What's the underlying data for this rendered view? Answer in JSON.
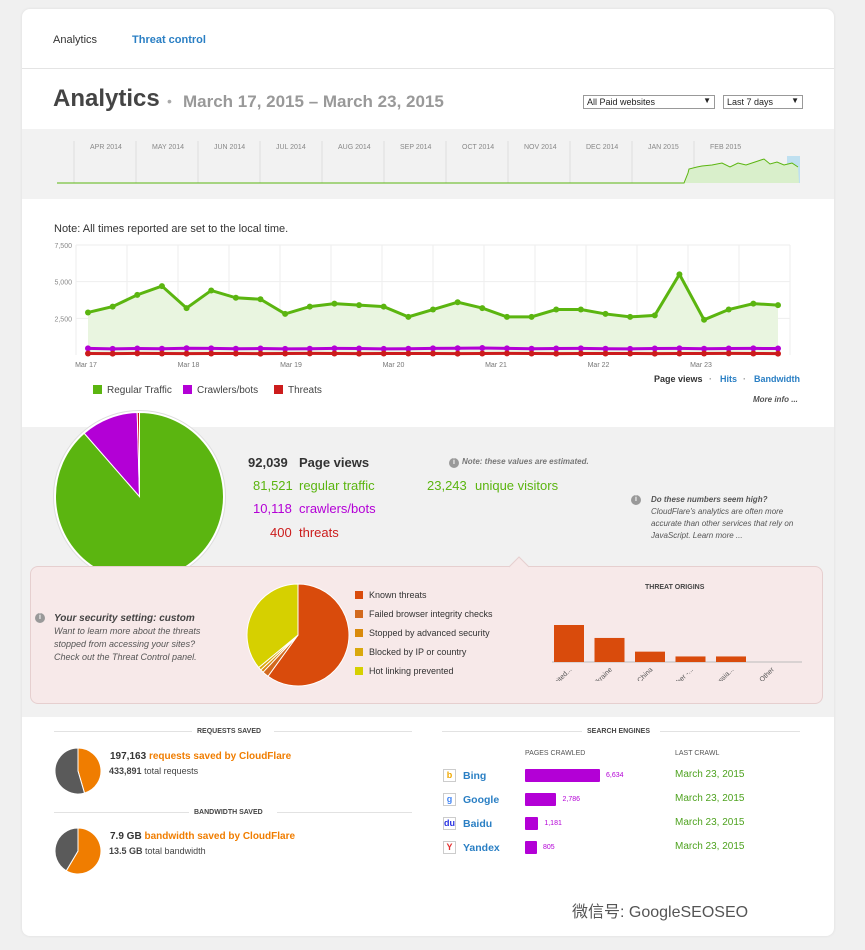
{
  "tabs": {
    "analytics": "Analytics",
    "threat_control": "Threat control"
  },
  "header": {
    "title": "Analytics",
    "separator": "•",
    "date_range": "March 17, 2015 – March 23, 2015",
    "site_select": "All Paid websites",
    "period_select": "Last 7 days"
  },
  "overview": {
    "months": [
      "APR 2014",
      "MAY 2014",
      "JUN 2014",
      "JUL 2014",
      "AUG 2014",
      "SEP 2014",
      "OCT 2014",
      "NOV 2014",
      "DEC 2014",
      "JAN 2015",
      "FEB 2015"
    ]
  },
  "note": "Note: All times reported are set to the local time.",
  "chart_data": [
    {
      "type": "line",
      "title": "",
      "y_ticks": [
        "7,500",
        "5,000",
        "2,500"
      ],
      "ylim": [
        0,
        7500
      ],
      "x_ticks": [
        "Mar 17",
        "Mar 18",
        "Mar 19",
        "Mar 20",
        "Mar 21",
        "Mar 22",
        "Mar 23"
      ],
      "series": [
        {
          "name": "Regular Traffic",
          "color": "#5bb510",
          "values": [
            2900,
            3300,
            4100,
            4700,
            3200,
            4400,
            3900,
            3800,
            2800,
            3300,
            3500,
            3400,
            3300,
            2600,
            3100,
            3600,
            3200,
            2600,
            2600,
            3100,
            3100,
            2800,
            2600,
            2700,
            5500,
            2400,
            3100,
            3500,
            3400
          ]
        },
        {
          "name": "Crawlers/bots",
          "color": "#b300d6",
          "values": [
            450,
            420,
            440,
            430,
            460,
            450,
            430,
            440,
            420,
            430,
            450,
            440,
            420,
            430,
            450,
            460,
            480,
            450,
            430,
            440,
            450,
            430,
            420,
            440,
            450,
            430,
            440,
            450,
            440
          ]
        },
        {
          "name": "Threats",
          "color": "#cc1c1c",
          "values": [
            100,
            90,
            110,
            100,
            95,
            105,
            100,
            90,
            100,
            110,
            100,
            95,
            100,
            105,
            100,
            95,
            100,
            110,
            100,
            90,
            100,
            105,
            100,
            95,
            100,
            100,
            110,
            100,
            95
          ]
        }
      ]
    },
    {
      "type": "pie",
      "values": [
        {
          "label": "regular traffic",
          "value": 81521,
          "color": "#5bb510"
        },
        {
          "label": "crawlers/bots",
          "value": 10118,
          "color": "#b300d6"
        },
        {
          "label": "threats",
          "value": 400,
          "color": "#cc1c1c"
        }
      ]
    },
    {
      "type": "pie",
      "values": [
        {
          "label": "Known threats",
          "value": 60,
          "color": "#d94b0c"
        },
        {
          "label": "Failed browser integrity checks",
          "value": 2,
          "color": "#d2691e"
        },
        {
          "label": "Stopped by advanced security",
          "value": 1,
          "color": "#d98a0c"
        },
        {
          "label": "Blocked by IP or country",
          "value": 1,
          "color": "#d9a80c"
        },
        {
          "label": "Hot linking prevented",
          "value": 36,
          "color": "#d6d000"
        }
      ]
    },
    {
      "type": "bar",
      "title": "THREAT ORIGINS",
      "categories": [
        "United...",
        "Ukraine",
        "China",
        "Other -...",
        "Russia...",
        "Other"
      ],
      "values": [
        100,
        65,
        28,
        15,
        15,
        0
      ],
      "color": "#d94b0c"
    },
    {
      "type": "pie",
      "values": [
        {
          "label": "requests saved by CloudFlare",
          "value": 197163,
          "color": "#f07d00"
        },
        {
          "label": "total requests",
          "value": 433891,
          "color": "#555"
        }
      ]
    },
    {
      "type": "pie",
      "values": [
        {
          "label": "bandwidth saved by CloudFlare",
          "value": 7.9,
          "color": "#f07d00"
        },
        {
          "label": "total bandwidth",
          "value": 13.5,
          "color": "#555"
        }
      ]
    },
    {
      "type": "bar",
      "title": "SEARCH ENGINES",
      "categories": [
        "Bing",
        "Google",
        "Baidu",
        "Yandex"
      ],
      "values": [
        6634,
        2786,
        1181,
        805
      ],
      "color": "#b300d6"
    }
  ],
  "legend": {
    "regular": "Regular Traffic",
    "crawlers": "Crawlers/bots",
    "threats": "Threats"
  },
  "metric_links": {
    "page_views": "Page views",
    "hits": "Hits",
    "bandwidth": "Bandwidth",
    "sep": "·",
    "more": "More info ..."
  },
  "summary": {
    "page_views_num": "92,039",
    "page_views_label": "Page views",
    "regular_num": "81,521",
    "regular_label": "regular traffic",
    "crawlers_num": "10,118",
    "crawlers_label": "crawlers/bots",
    "threats_num": "400",
    "threats_label": "threats",
    "estimated": "Note: these values are estimated.",
    "unique_num": "23,243",
    "unique_label": "unique visitors",
    "high_title": "Do these numbers seem high?",
    "high_text": "CloudFlare's analytics are often more accurate than other services that rely on JavaScript. Learn more ..."
  },
  "security": {
    "title": "Your security setting: custom",
    "text": "Want to learn more about the threats stopped from accessing your sites? Check out the Threat Control panel.",
    "legend": [
      "Known threats",
      "Failed browser integrity checks",
      "Stopped by advanced security",
      "Blocked by IP or country",
      "Hot linking prevented"
    ],
    "origins_title": "THREAT ORIGINS",
    "origins": [
      "United...",
      "Ukraine",
      "China",
      "Other -...",
      "Russia...",
      "Other"
    ]
  },
  "requests_saved": {
    "heading": "REQUESTS SAVED",
    "num": "197,163",
    "label": "requests saved by CloudFlare",
    "total_num": "433,891",
    "total_label": "total requests"
  },
  "bandwidth_saved": {
    "heading": "BANDWIDTH SAVED",
    "num": "7.9 GB",
    "label": "bandwidth saved by CloudFlare",
    "total_num": "13.5 GB",
    "total_label": "total bandwidth"
  },
  "search_engines": {
    "heading": "SEARCH ENGINES",
    "col_pages": "PAGES CRAWLED",
    "col_last": "LAST CRAWL",
    "rows": [
      {
        "name": "Bing",
        "value": "6,634",
        "date": "March 23, 2015",
        "icon": "b"
      },
      {
        "name": "Google",
        "value": "2,786",
        "date": "March 23, 2015",
        "icon": "g"
      },
      {
        "name": "Baidu",
        "value": "1,181",
        "date": "March 23, 2015",
        "icon": "du"
      },
      {
        "name": "Yandex",
        "value": "805",
        "date": "March 23, 2015",
        "icon": "Y"
      }
    ]
  },
  "watermark": "微信号: GoogleSEOSEO"
}
